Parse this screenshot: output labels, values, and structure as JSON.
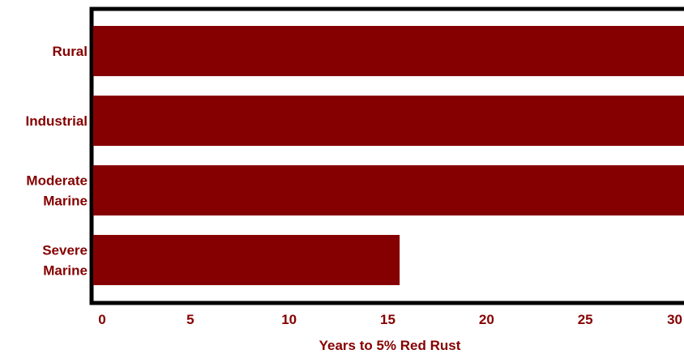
{
  "chart_data": {
    "type": "bar",
    "orientation": "horizontal",
    "categories": [
      "Rural",
      "Industrial",
      "Moderate Marine",
      "Severe Marine"
    ],
    "category_lines": [
      [
        "Rural"
      ],
      [
        "Industrial"
      ],
      [
        "Moderate",
        "Marine"
      ],
      [
        "Severe",
        "Marine"
      ]
    ],
    "values": [
      30,
      30,
      30,
      15.6
    ],
    "xlabel": "Years to 5% Red Rust",
    "xlim": [
      0,
      30
    ],
    "xticks": [
      0,
      5,
      10,
      15,
      20,
      25,
      30
    ],
    "grid": false,
    "legend": "none",
    "colors": {
      "bar": "#850000",
      "text": "#850000",
      "frame": "#000000"
    }
  }
}
